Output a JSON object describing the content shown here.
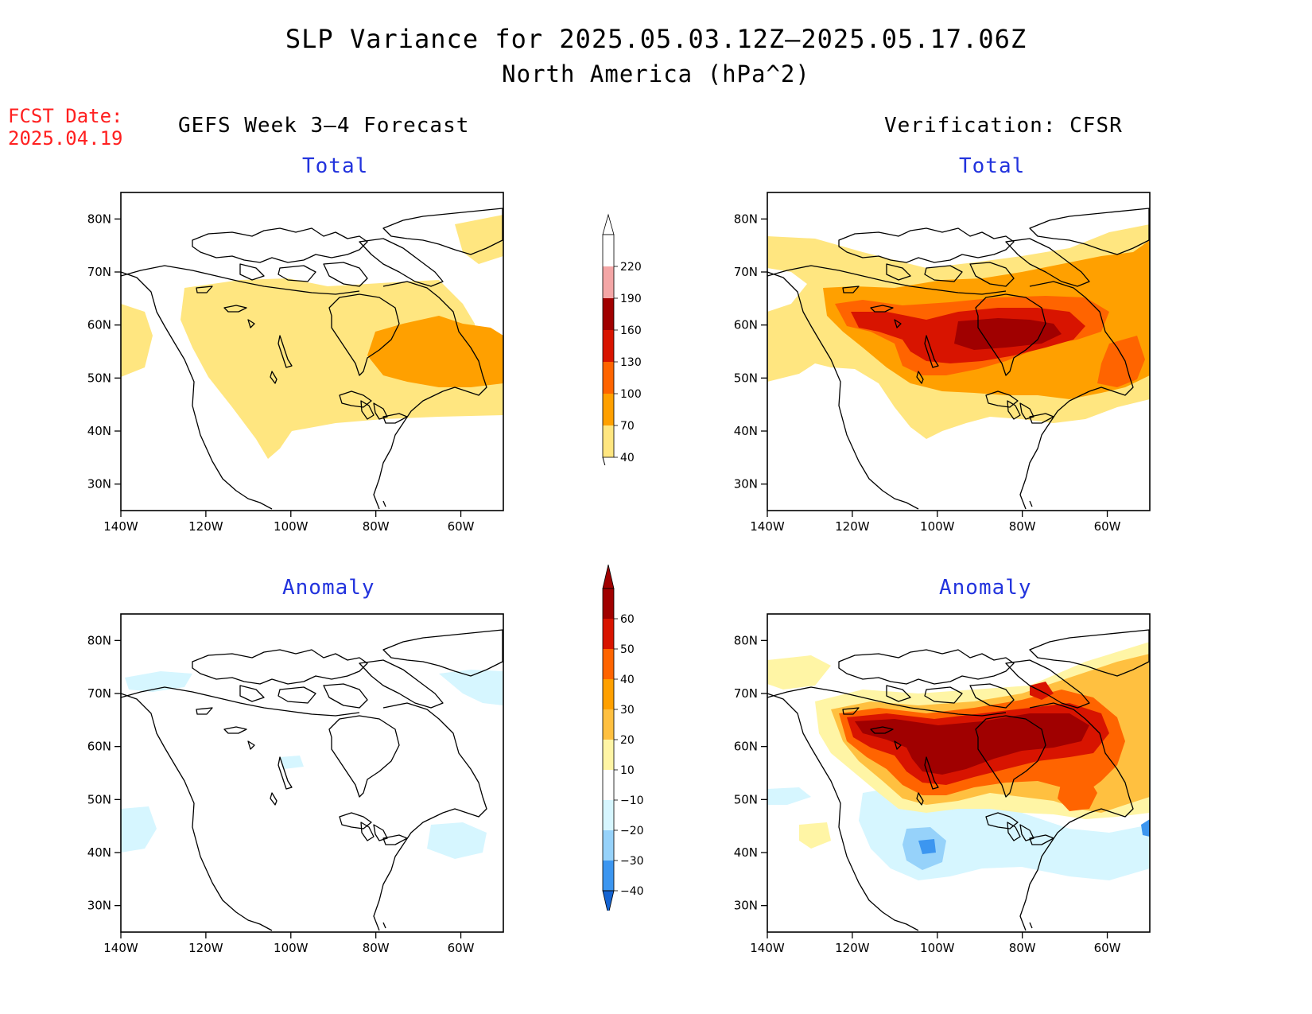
{
  "header": {
    "title_line1": "SLP Variance for 2025.05.03.12Z–2025.05.17.06Z",
    "title_line2": "North America (hPa^2)",
    "fcst_label": "FCST Date:",
    "fcst_date": "2025.04.19"
  },
  "columns": {
    "left_title": "GEFS Week 3–4 Forecast",
    "right_title": "Verification: CFSR"
  },
  "panels": [
    {
      "id": "gefs-total",
      "subtitle": "Total"
    },
    {
      "id": "cfsr-total",
      "subtitle": "Total"
    },
    {
      "id": "gefs-anomaly",
      "subtitle": "Anomaly"
    },
    {
      "id": "cfsr-anomaly",
      "subtitle": "Anomaly"
    }
  ],
  "axes": {
    "lat_labels": [
      "80N",
      "70N",
      "60N",
      "50N",
      "40N",
      "30N"
    ],
    "lon_labels": [
      "140W",
      "120W",
      "100W",
      "80W",
      "60W"
    ],
    "lon_range": [
      -140,
      -50
    ],
    "lat_range": [
      25,
      85
    ]
  },
  "colorbars": {
    "total": {
      "labels": [
        "220",
        "190",
        "160",
        "130",
        "100",
        "70",
        "40"
      ],
      "colors": [
        "#ffffff",
        "#f4a6a6",
        "#a00000",
        "#d81400",
        "#ff6400",
        "#ffa000",
        "#ffe680"
      ]
    },
    "anomaly": {
      "labels": [
        "60",
        "50",
        "40",
        "30",
        "20",
        "10",
        "−10",
        "−20",
        "−30",
        "−40"
      ],
      "colors": [
        "#a00000",
        "#d81400",
        "#ff6400",
        "#ffa000",
        "#ffc040",
        "#fff5a5",
        "#ffffff",
        "#d6f6ff",
        "#96d2fa",
        "#3c96f0",
        "#1464d2"
      ]
    }
  },
  "colors": {
    "fcst_text": "#ff2020",
    "subtitle_text": "#2233dd"
  }
}
